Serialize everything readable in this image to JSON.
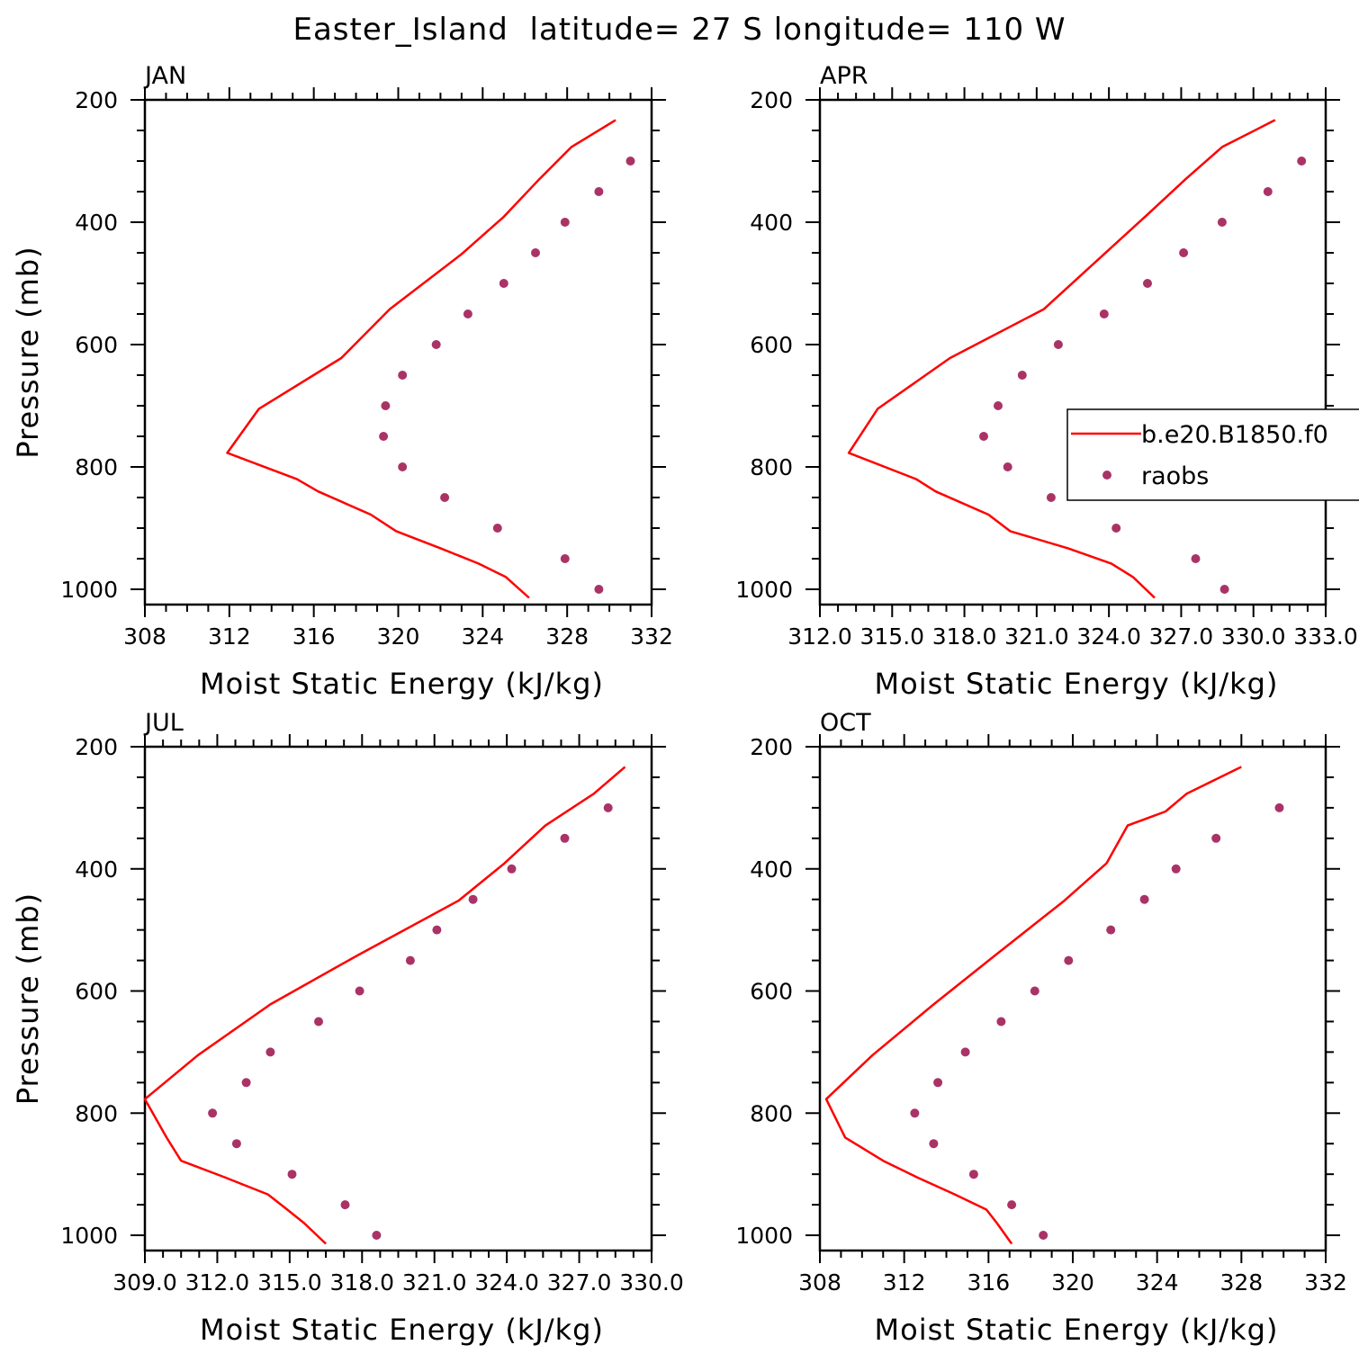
{
  "figure": {
    "title": "Easter_Island  latitude= 27 S longitude= 110 W"
  },
  "colors": {
    "model": "#ff0000",
    "obs": "#aa3366",
    "axis": "#000000"
  },
  "legend": {
    "placement": "right-middle of APR panel",
    "entries": [
      {
        "label": "b.e20.B1850.f0",
        "type": "line"
      },
      {
        "label": "raobs",
        "type": "marker"
      }
    ]
  },
  "chart_data": [
    {
      "type": "line",
      "panel": "JAN",
      "title": "JAN",
      "xlabel": "Moist Static Energy (kJ/kg)",
      "ylabel": "Pressure (mb)",
      "xlim": [
        308,
        332
      ],
      "ylim": [
        200,
        1025
      ],
      "y_inverted": true,
      "x_ticks": [
        "308",
        "312",
        "316",
        "320",
        "324",
        "328",
        "332"
      ],
      "x_tick_values": [
        308,
        312,
        316,
        320,
        324,
        328,
        332
      ],
      "y_ticks": [
        "200",
        "400",
        "600",
        "800",
        "1000"
      ],
      "y_tick_values": [
        200,
        400,
        600,
        800,
        1000
      ],
      "series": [
        {
          "name": "b.e20.B1850.f0",
          "kind": "line",
          "x": [
            330.3,
            328.2,
            326.7,
            325.0,
            323.0,
            319.6,
            317.3,
            313.4,
            311.9,
            315.2,
            316.2,
            318.7,
            319.9,
            322.0,
            323.8,
            325.1,
            326.2
          ],
          "y": [
            233,
            277,
            329,
            391,
            452,
            542,
            622,
            705,
            777,
            820,
            840,
            878,
            905,
            933,
            958,
            980,
            1014
          ]
        },
        {
          "name": "raobs",
          "kind": "scatter",
          "x": [
            331.0,
            329.5,
            327.9,
            326.5,
            325.0,
            323.3,
            321.8,
            320.2,
            319.4,
            319.3,
            320.2,
            322.2,
            324.7,
            327.9,
            329.5
          ],
          "y": [
            300,
            350,
            400,
            450,
            500,
            550,
            600,
            650,
            700,
            750,
            800,
            850,
            900,
            950,
            1000
          ]
        }
      ]
    },
    {
      "type": "line",
      "panel": "APR",
      "title": "APR",
      "xlabel": "Moist Static Energy (kJ/kg)",
      "ylabel": "",
      "xlim": [
        312.0,
        333.0
      ],
      "ylim": [
        200,
        1025
      ],
      "y_inverted": true,
      "x_ticks": [
        "312.0",
        "315.0",
        "318.0",
        "321.0",
        "324.0",
        "327.0",
        "330.0",
        "333.0"
      ],
      "x_tick_values": [
        312.0,
        315.0,
        318.0,
        321.0,
        324.0,
        327.0,
        330.0,
        333.0
      ],
      "y_ticks": [
        "200",
        "400",
        "600",
        "800",
        "1000"
      ],
      "y_tick_values": [
        200,
        400,
        600,
        800,
        1000
      ],
      "series": [
        {
          "name": "b.e20.B1850.f0",
          "kind": "line",
          "x": [
            330.9,
            328.7,
            327.2,
            325.5,
            323.8,
            321.3,
            317.4,
            314.4,
            313.2,
            316.0,
            316.8,
            319.0,
            319.9,
            322.3,
            324.1,
            325.0,
            325.9
          ],
          "y": [
            233,
            277,
            329,
            391,
            452,
            542,
            622,
            705,
            777,
            820,
            840,
            878,
            905,
            933,
            958,
            980,
            1014
          ]
        },
        {
          "name": "raobs",
          "kind": "scatter",
          "x": [
            332.0,
            330.6,
            328.7,
            327.1,
            325.6,
            323.8,
            321.9,
            320.4,
            319.4,
            318.8,
            319.8,
            321.6,
            324.3,
            327.6,
            328.8
          ],
          "y": [
            300,
            350,
            400,
            450,
            500,
            550,
            600,
            650,
            700,
            750,
            800,
            850,
            900,
            950,
            1000
          ]
        }
      ]
    },
    {
      "type": "line",
      "panel": "JUL",
      "title": "JUL",
      "xlabel": "Moist Static Energy (kJ/kg)",
      "ylabel": "Pressure (mb)",
      "xlim": [
        309.0,
        330.0
      ],
      "ylim": [
        200,
        1025
      ],
      "y_inverted": true,
      "x_ticks": [
        "309.0",
        "312.0",
        "315.0",
        "318.0",
        "321.0",
        "324.0",
        "327.0",
        "330.0"
      ],
      "x_tick_values": [
        309.0,
        312.0,
        315.0,
        318.0,
        321.0,
        324.0,
        327.0,
        330.0
      ],
      "y_ticks": [
        "200",
        "400",
        "600",
        "800",
        "1000"
      ],
      "y_tick_values": [
        200,
        400,
        600,
        800,
        1000
      ],
      "series": [
        {
          "name": "b.e20.B1850.f0",
          "kind": "line",
          "x": [
            328.9,
            327.6,
            325.6,
            323.9,
            322.0,
            317.8,
            314.2,
            311.2,
            309.0,
            309.9,
            310.5,
            312.3,
            314.1,
            314.9,
            315.6,
            316.5
          ],
          "y": [
            233,
            277,
            329,
            391,
            452,
            542,
            622,
            705,
            777,
            840,
            878,
            905,
            933,
            958,
            980,
            1014
          ]
        },
        {
          "name": "raobs",
          "kind": "scatter",
          "x": [
            328.2,
            326.4,
            324.2,
            322.6,
            321.1,
            320.0,
            317.9,
            316.2,
            314.2,
            313.2,
            311.8,
            312.8,
            315.1,
            317.3,
            318.6
          ],
          "y": [
            300,
            350,
            400,
            450,
            500,
            550,
            600,
            650,
            700,
            750,
            800,
            850,
            900,
            950,
            1000
          ]
        }
      ]
    },
    {
      "type": "line",
      "panel": "OCT",
      "title": "OCT",
      "xlabel": "Moist Static Energy (kJ/kg)",
      "ylabel": "",
      "xlim": [
        308,
        332
      ],
      "ylim": [
        200,
        1025
      ],
      "y_inverted": true,
      "x_ticks": [
        "308",
        "312",
        "316",
        "320",
        "324",
        "328",
        "332"
      ],
      "x_tick_values": [
        308,
        312,
        316,
        320,
        324,
        328,
        332
      ],
      "y_ticks": [
        "200",
        "400",
        "600",
        "800",
        "1000"
      ],
      "y_tick_values": [
        200,
        400,
        600,
        800,
        1000
      ],
      "series": [
        {
          "name": "b.e20.B1850.f0",
          "kind": "line",
          "x": [
            328.0,
            325.4,
            324.4,
            322.6,
            321.6,
            319.6,
            316.3,
            313.4,
            310.5,
            308.3,
            309.2,
            311.0,
            312.6,
            314.4,
            315.9,
            316.4,
            317.1
          ],
          "y": [
            233,
            277,
            306,
            329,
            391,
            452,
            542,
            622,
            705,
            777,
            840,
            878,
            905,
            933,
            958,
            980,
            1014
          ]
        },
        {
          "name": "raobs",
          "kind": "scatter",
          "x": [
            329.8,
            326.8,
            324.9,
            323.4,
            321.8,
            319.8,
            318.2,
            316.6,
            314.9,
            313.6,
            312.5,
            313.4,
            315.3,
            317.1,
            318.6
          ],
          "y": [
            300,
            350,
            400,
            450,
            500,
            550,
            600,
            650,
            700,
            750,
            800,
            850,
            900,
            950,
            1000
          ]
        }
      ]
    }
  ]
}
